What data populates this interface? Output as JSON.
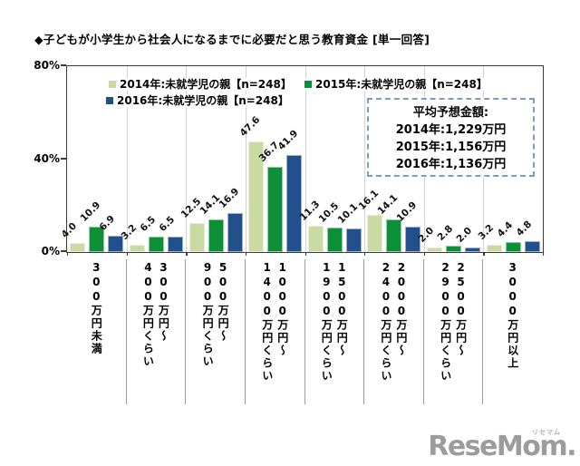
{
  "title": "◆子どもが小学生から社会人になるまでに必要だと思う教育資金 [単一回答]",
  "legend": {
    "items": [
      {
        "label": "2014年:未就学児の親【n=248】",
        "color": "#c9dba3"
      },
      {
        "label": "2015年:未就学児の親【n=248】",
        "color": "#0d8f37"
      },
      {
        "label": "2016年:未就学児の親【n=248】",
        "color": "#21508d"
      }
    ]
  },
  "average_box": {
    "title": "平均予想金額:",
    "lines": [
      "2014年:1,229万円",
      "2015年:1,156万円",
      "2016年:1,136万円"
    ]
  },
  "chart_data": {
    "type": "bar",
    "title": "子どもが小学生から社会人になるまでに必要だと思う教育資金(単一回答)",
    "categories": [
      "300万円未満",
      "300万円〜\n400万円くらい",
      "500万円〜\n900万円くらい",
      "1000万円〜\n1400万円くらい",
      "1500万円〜\n1900万円くらい",
      "2000万円〜\n2400万円くらい",
      "2500万円〜\n2900万円くらい",
      "3000万円以上"
    ],
    "series": [
      {
        "name": "2014年:未就学児の親【n=248】",
        "color": "#c9dba3",
        "values": [
          4.0,
          3.2,
          12.5,
          47.6,
          11.3,
          16.1,
          2.0,
          3.2
        ]
      },
      {
        "name": "2015年:未就学児の親【n=248】",
        "color": "#0d8f37",
        "values": [
          10.9,
          6.5,
          14.1,
          36.7,
          10.5,
          14.1,
          2.8,
          4.4
        ]
      },
      {
        "name": "2016年:未就学児の親【n=248】",
        "color": "#21508d",
        "values": [
          6.9,
          6.5,
          16.9,
          41.9,
          10.1,
          10.9,
          2.0,
          4.8
        ]
      }
    ],
    "xlabel": "",
    "ylabel": "",
    "ylim": [
      0,
      80
    ],
    "yticks": [
      "80%",
      "40%",
      "0%"
    ],
    "grid": false,
    "legend_position": "top-inside",
    "value_labels": true
  },
  "watermark": {
    "text": "ReseMom.",
    "ruby": "リセマム"
  }
}
